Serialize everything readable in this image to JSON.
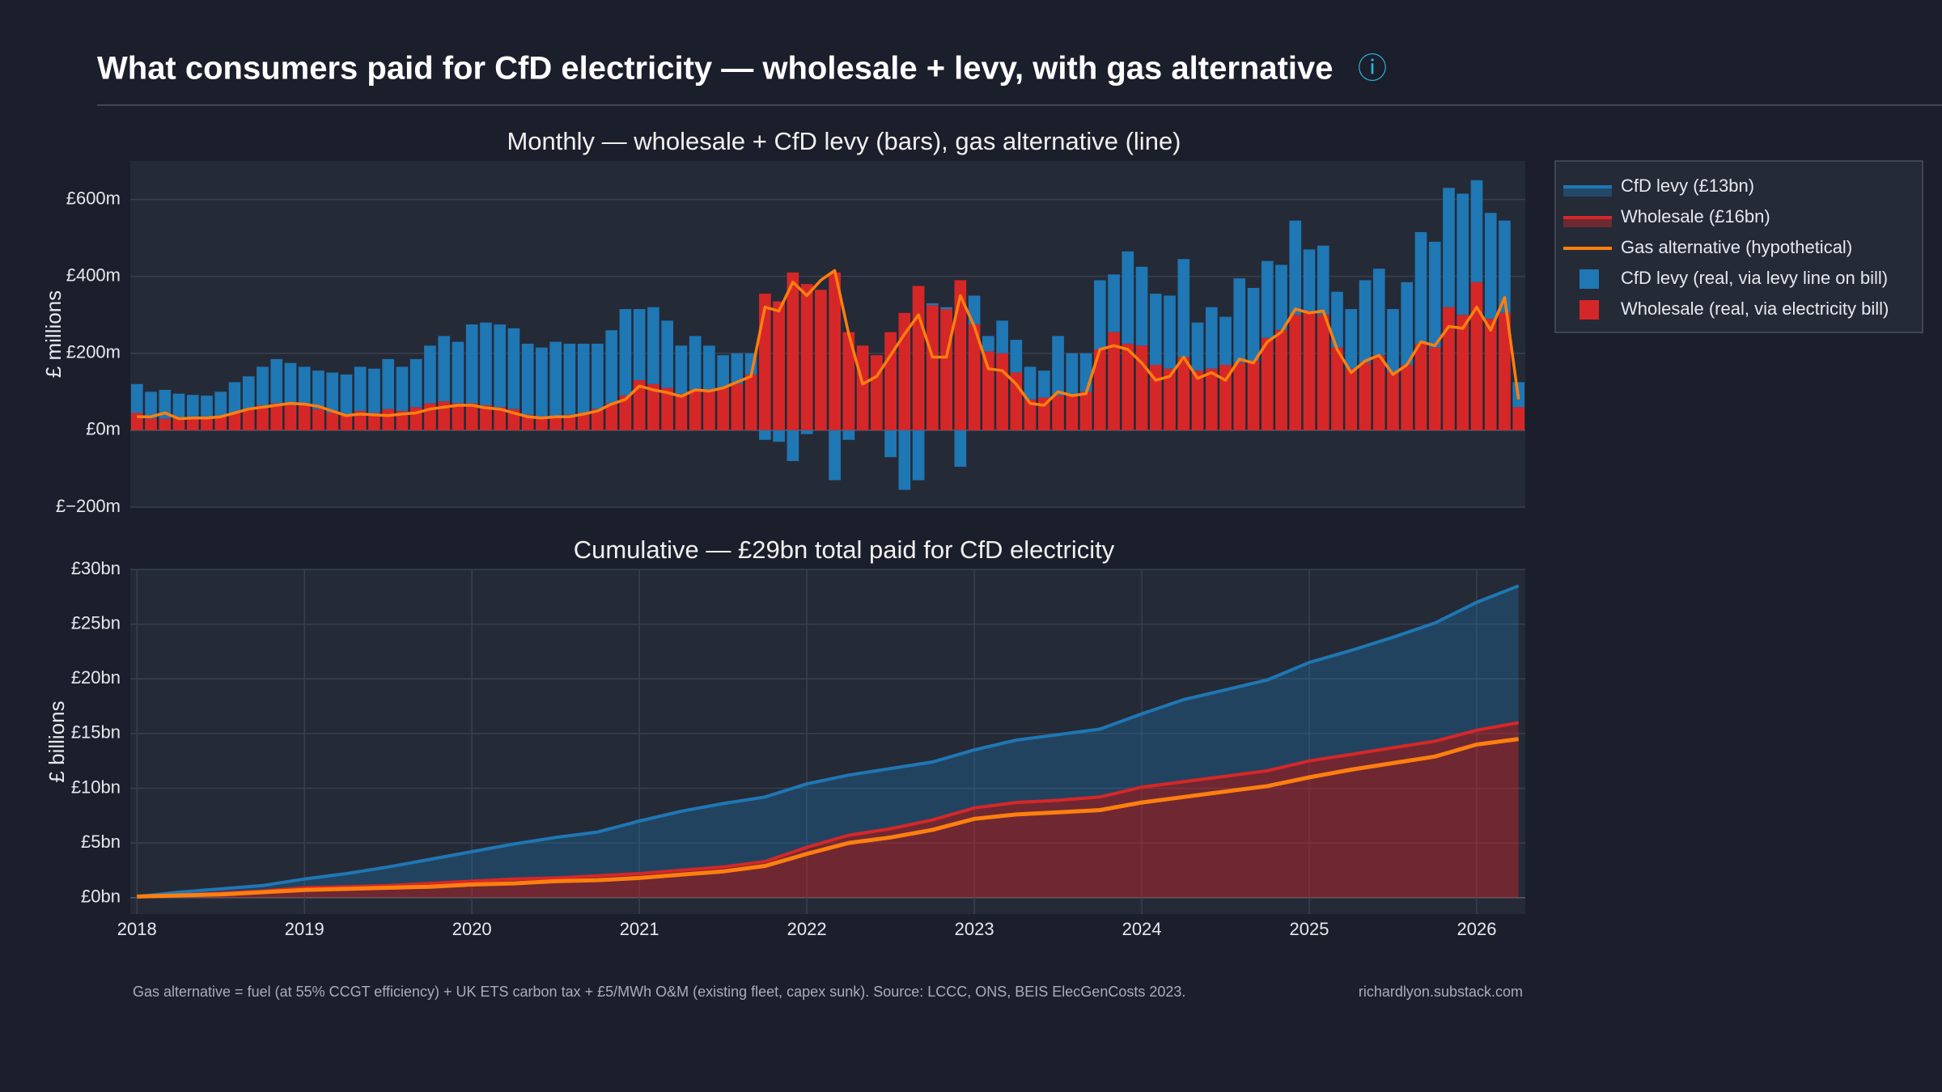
{
  "header": {
    "title": "What consumers paid for CfD electricity — wholesale + levy, with gas alternative",
    "info_icon": "ⓘ"
  },
  "footer": {
    "note": "Gas alternative = fuel (at 55% CCGT efficiency) + UK ETS carbon tax + £5/MWh O&M (existing fleet, capex sunk). Source: LCCC, ONS, BEIS ElecGenCosts 2023.",
    "credit": "richardlyon.substack.com"
  },
  "chart_data": [
    {
      "type": "bar",
      "title": "Monthly — wholesale + CfD levy (bars), gas alternative (line)",
      "ylabel": "£ millions",
      "xlim": [
        2017.96,
        2026.29
      ],
      "ylim": [
        -200,
        700
      ],
      "yticks": [
        {
          "value": -200,
          "label": "£−200m"
        },
        {
          "value": 0,
          "label": "£0m"
        },
        {
          "value": 200,
          "label": "£200m"
        },
        {
          "value": 400,
          "label": "£400m"
        },
        {
          "value": 600,
          "label": "£600m"
        }
      ],
      "grid": true,
      "series": [
        {
          "name": "CfD levy (real, via levy line on bill)",
          "color": "#1f77b4",
          "values": [
            75,
            70,
            75,
            65,
            62,
            60,
            65,
            80,
            85,
            100,
            115,
            110,
            100,
            100,
            105,
            105,
            115,
            115,
            130,
            115,
            125,
            150,
            170,
            160,
            205,
            215,
            215,
            210,
            185,
            185,
            195,
            185,
            180,
            170,
            190,
            225,
            185,
            200,
            175,
            125,
            140,
            115,
            85,
            80,
            55,
            -25,
            -30,
            -80,
            -10,
            0,
            -130,
            -25,
            0,
            0,
            -70,
            -155,
            -130,
            5,
            5,
            -95,
            75,
            40,
            85,
            85,
            85,
            70,
            155,
            110,
            100,
            180,
            150,
            240,
            205,
            185,
            190,
            255,
            125,
            160,
            125,
            220,
            190,
            200,
            170,
            245,
            160,
            180,
            145,
            155,
            215,
            225,
            165,
            215,
            290,
            275,
            310,
            315,
            265,
            275,
            240,
            65
          ]
        },
        {
          "name": "Wholesale (real, via electricity bill)",
          "color": "#d62728",
          "values": [
            45,
            30,
            30,
            30,
            30,
            30,
            35,
            45,
            55,
            65,
            70,
            65,
            65,
            55,
            45,
            40,
            50,
            45,
            55,
            50,
            60,
            70,
            75,
            70,
            70,
            65,
            60,
            55,
            40,
            30,
            35,
            40,
            45,
            55,
            70,
            90,
            130,
            120,
            110,
            95,
            105,
            105,
            110,
            120,
            145,
            355,
            335,
            410,
            380,
            365,
            410,
            255,
            220,
            195,
            255,
            305,
            375,
            325,
            315,
            390,
            275,
            205,
            200,
            150,
            80,
            85,
            90,
            90,
            100,
            210,
            255,
            225,
            220,
            170,
            160,
            190,
            155,
            160,
            170,
            175,
            180,
            240,
            260,
            300,
            310,
            300,
            215,
            160,
            175,
            195,
            150,
            170,
            225,
            215,
            320,
            300,
            385,
            290,
            305,
            60
          ]
        },
        {
          "type": "line",
          "color": "#ff7f0e",
          "values": [
            35,
            35,
            45,
            30,
            32,
            32,
            35,
            45,
            55,
            60,
            65,
            70,
            68,
            62,
            50,
            38,
            42,
            40,
            38,
            42,
            45,
            55,
            60,
            65,
            65,
            58,
            55,
            45,
            35,
            32,
            35,
            35,
            42,
            50,
            68,
            80,
            115,
            105,
            98,
            88,
            105,
            102,
            110,
            125,
            140,
            320,
            310,
            385,
            350,
            390,
            415,
            250,
            120,
            140,
            195,
            250,
            300,
            190,
            190,
            350,
            270,
            160,
            155,
            120,
            70,
            65,
            100,
            90,
            95,
            210,
            220,
            210,
            175,
            130,
            140,
            190,
            135,
            150,
            130,
            185,
            175,
            230,
            255,
            315,
            305,
            310,
            210,
            150,
            180,
            195,
            145,
            170,
            230,
            220,
            270,
            265,
            320,
            260,
            345,
            80
          ]
        }
      ]
    },
    {
      "type": "area",
      "title": "Cumulative — £29bn total paid for CfD electricity",
      "ylabel": "£ billions",
      "x": [
        2018,
        2018.25,
        2018.5,
        2018.75,
        2019,
        2019.25,
        2019.5,
        2019.75,
        2020,
        2020.25,
        2020.5,
        2020.75,
        2021,
        2021.25,
        2021.5,
        2021.75,
        2022,
        2022.25,
        2022.5,
        2022.75,
        2023,
        2023.25,
        2023.5,
        2023.75,
        2024,
        2024.25,
        2024.5,
        2024.75,
        2025,
        2025.25,
        2025.5,
        2025.75,
        2026,
        2026.25
      ],
      "xlim": [
        2017.96,
        2026.29
      ],
      "xticks": [
        2018,
        2019,
        2020,
        2021,
        2022,
        2023,
        2024,
        2025,
        2026
      ],
      "ylim": [
        -1.5,
        30
      ],
      "yticks": [
        {
          "value": 0,
          "label": "£0bn"
        },
        {
          "value": 5,
          "label": "£5bn"
        },
        {
          "value": 10,
          "label": "£10bn"
        },
        {
          "value": 15,
          "label": "£15bn"
        },
        {
          "value": 20,
          "label": "£20bn"
        },
        {
          "value": 25,
          "label": "£25bn"
        },
        {
          "value": 30,
          "label": "£30bn"
        }
      ],
      "grid": true,
      "xgrid": true,
      "stacked": true,
      "legend": "outside right",
      "series": [
        {
          "name": "CfD levy (£13bn)",
          "color": "#1f77b4",
          "values": [
            0,
            0.3,
            0.4,
            0.5,
            0.8,
            1.2,
            1.7,
            2.2,
            2.7,
            3.2,
            3.7,
            4.0,
            4.8,
            5.4,
            5.8,
            5.9,
            5.8,
            5.5,
            5.5,
            5.3,
            5.3,
            5.7,
            6.0,
            6.2,
            6.7,
            7.5,
            7.9,
            8.3,
            9.0,
            9.5,
            10.1,
            10.8,
            11.7,
            12.5
          ]
        },
        {
          "name": "Wholesale (£16bn)",
          "color": "#d62728",
          "values": [
            0.1,
            0.2,
            0.4,
            0.6,
            0.9,
            1.0,
            1.1,
            1.3,
            1.5,
            1.7,
            1.8,
            2.0,
            2.2,
            2.5,
            2.8,
            3.3,
            4.6,
            5.7,
            6.3,
            7.1,
            8.2,
            8.7,
            8.9,
            9.2,
            10.1,
            10.6,
            11.1,
            11.6,
            12.5,
            13.1,
            13.7,
            14.3,
            15.3,
            16.0
          ]
        },
        {
          "name": "Gas alternative (hypothetical)",
          "type": "line",
          "color": "#ff7f0e",
          "values": [
            0.1,
            0.2,
            0.3,
            0.5,
            0.7,
            0.8,
            0.9,
            1.0,
            1.2,
            1.3,
            1.5,
            1.6,
            1.8,
            2.1,
            2.4,
            2.9,
            4.0,
            5.0,
            5.5,
            6.2,
            7.2,
            7.6,
            7.8,
            8.0,
            8.7,
            9.2,
            9.7,
            10.2,
            11.0,
            11.7,
            12.3,
            12.9,
            14.0,
            14.5
          ]
        }
      ]
    }
  ]
}
